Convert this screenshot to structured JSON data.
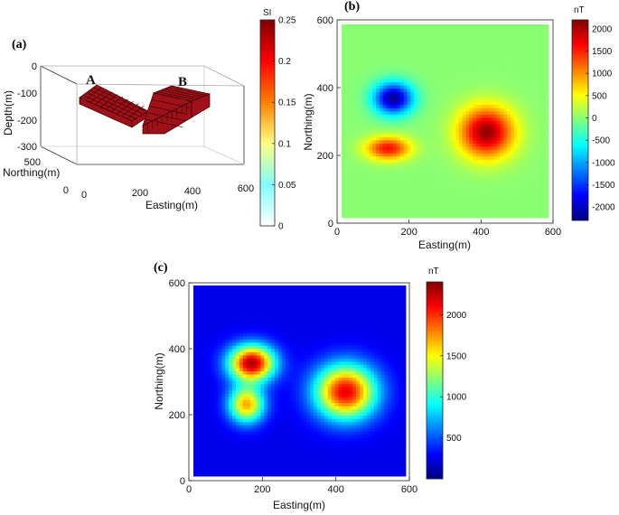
{
  "colors": {
    "jet": [
      "#00007f",
      "#0000ff",
      "#007fff",
      "#00ffff",
      "#7fff7f",
      "#ffff00",
      "#ff7f00",
      "#ff0000",
      "#7f0000"
    ],
    "hot_white": [
      "#ffffff",
      "#80ffff",
      "#ffff80",
      "#ff8000",
      "#ff0000",
      "#800000"
    ],
    "block": "#a01018",
    "block_grid": "#300000"
  },
  "chart_data": [
    {
      "panel": "(a)",
      "type": "heatmap",
      "view": "3d-perspective",
      "zlabel": "Depth(m)",
      "ylabel": "Northing(m)",
      "xlabel": "Easting(m)",
      "z_ticks": [
        "0",
        "-100",
        "-200",
        "-300"
      ],
      "y_ticks": [
        "500",
        "0"
      ],
      "x_ticks": [
        "0",
        "200",
        "400",
        "600"
      ],
      "blocks": [
        {
          "label": "A",
          "easting": [
            100,
            200
          ],
          "northing": [
            100,
            350
          ],
          "depth": [
            -50,
            -100
          ]
        },
        {
          "label": "B",
          "easting": [
            350,
            500
          ],
          "northing": [
            250,
            450
          ],
          "depth": [
            -50,
            -250
          ]
        }
      ],
      "colorbar": {
        "title": "SI",
        "ticks": [
          "0.25",
          "0.2",
          "0.15",
          "0.1",
          "0.05",
          "0"
        ],
        "range": [
          0,
          0.25
        ]
      }
    },
    {
      "panel": "(b)",
      "type": "heatmap",
      "xlabel": "Easting(m)",
      "ylabel": "Northing(m)",
      "xlim": [
        0,
        600
      ],
      "ylim": [
        0,
        600
      ],
      "x_ticks": [
        "0",
        "200",
        "400",
        "600"
      ],
      "y_ticks": [
        "600",
        "400",
        "200",
        "0"
      ],
      "background": 0,
      "anomalies": [
        {
          "x": 150,
          "y": 370,
          "value": -2200,
          "sx": 40,
          "sy": 35
        },
        {
          "x": 135,
          "y": 215,
          "value": 1600,
          "sx": 45,
          "sy": 25
        },
        {
          "x": 420,
          "y": 265,
          "value": 2100,
          "sx": 55,
          "sy": 55
        }
      ],
      "colorbar": {
        "title": "nT",
        "ticks": [
          "2000",
          "1500",
          "1000",
          "500",
          "0",
          "-500",
          "-1000",
          "-1500",
          "-2000"
        ],
        "range": [
          -2300,
          2200
        ]
      }
    },
    {
      "panel": "(c)",
      "type": "heatmap",
      "xlabel": "Easting(m)",
      "ylabel": "Northing(m)",
      "xlim": [
        0,
        600
      ],
      "ylim": [
        0,
        600
      ],
      "x_ticks": [
        "0",
        "200",
        "400",
        "600"
      ],
      "y_ticks": [
        "600",
        "400",
        "200",
        "0"
      ],
      "background": 250,
      "anomalies": [
        {
          "x": 165,
          "y": 355,
          "value": 2300,
          "sx": 45,
          "sy": 40
        },
        {
          "x": 150,
          "y": 225,
          "value": 1700,
          "sx": 35,
          "sy": 40
        },
        {
          "x": 430,
          "y": 265,
          "value": 2150,
          "sx": 60,
          "sy": 60
        }
      ],
      "colorbar": {
        "title": "nT",
        "ticks": [
          "2000",
          "1500",
          "1000",
          "500"
        ],
        "range": [
          0,
          2400
        ]
      }
    }
  ]
}
